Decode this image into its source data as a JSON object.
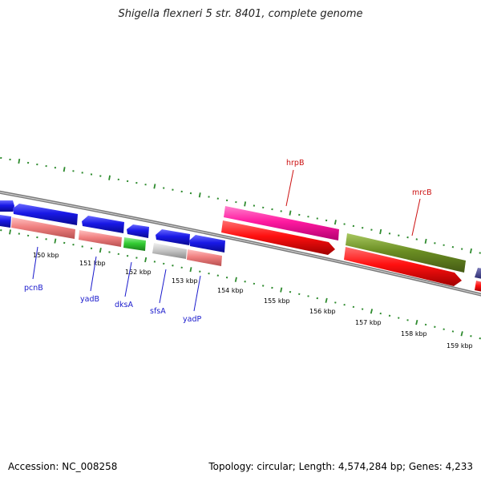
{
  "title": "Shigella flexneri 5 str. 8401, complete genome",
  "footer": {
    "accession": "Accession: NC_008258",
    "summary": "Topology: circular; Length: 4,574,284 bp; Genes: 4,233"
  },
  "colors": {
    "backbone": "#7a7a7a",
    "cds_blue": "#1818e6",
    "pink": "#ff1aa0",
    "red": "#ff1010",
    "salmon": "#f08080",
    "olive": "#6b8e23",
    "green": "#33cc33",
    "gray": "#c8c8c8",
    "tick_green": "#2e8b2e",
    "label_blue": "#1a1acc",
    "label_red": "#cc1111"
  },
  "ticks": [
    {
      "label": "150 kbp"
    },
    {
      "label": "151 kbp"
    },
    {
      "label": "152 kbp"
    },
    {
      "label": "153 kbp"
    },
    {
      "label": "154 kbp"
    },
    {
      "label": "155 kbp"
    },
    {
      "label": "156 kbp"
    },
    {
      "label": "157 kbp"
    },
    {
      "label": "158 kbp"
    },
    {
      "label": "159 kbp"
    }
  ],
  "gene_labels": [
    {
      "name": "pcnB",
      "color": "label_blue"
    },
    {
      "name": "yadB",
      "color": "label_blue"
    },
    {
      "name": "dksA",
      "color": "label_blue"
    },
    {
      "name": "sfsA",
      "color": "label_blue"
    },
    {
      "name": "yadP",
      "color": "label_blue"
    },
    {
      "name": "hrpB",
      "color": "label_red"
    },
    {
      "name": "mrcB",
      "color": "label_red"
    }
  ]
}
